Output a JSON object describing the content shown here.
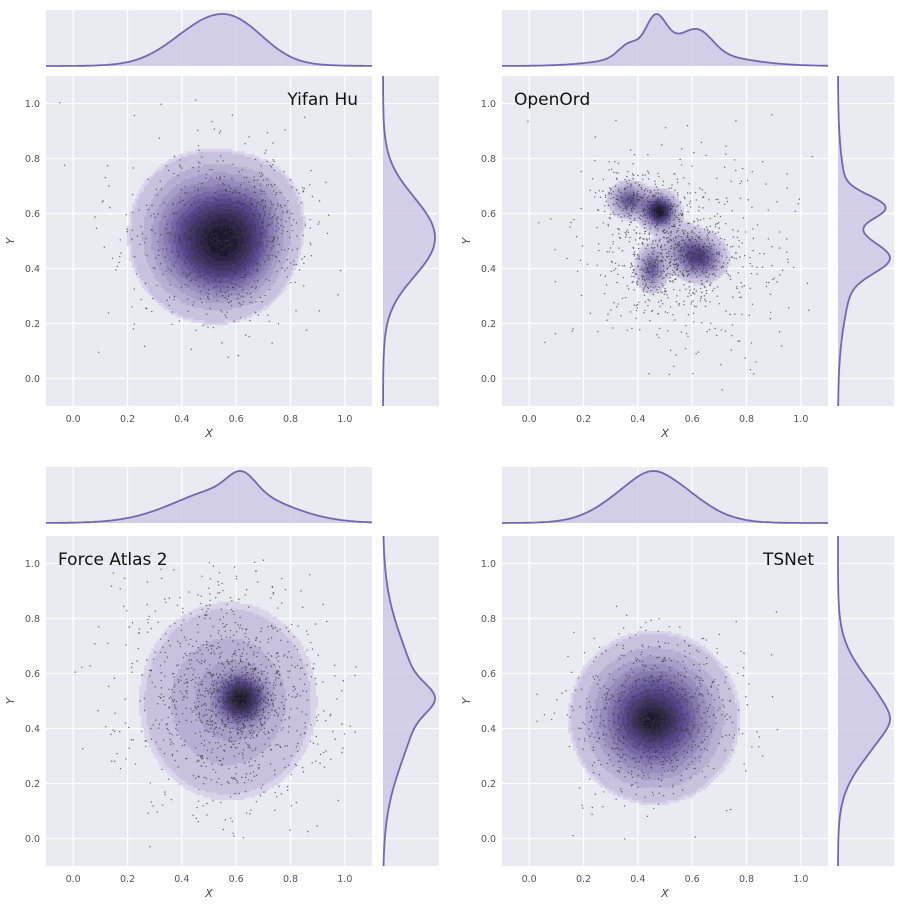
{
  "chart_data": [
    {
      "type": "scatter",
      "title": "Yifan Hu",
      "xlabel": "X",
      "ylabel": "Y",
      "xlim": [
        -0.1,
        1.1
      ],
      "ylim": [
        -0.1,
        1.1
      ],
      "xticks": [
        "0.0",
        "0.2",
        "0.4",
        "0.6",
        "0.8",
        "1.0"
      ],
      "yticks": [
        "0.0",
        "0.2",
        "0.4",
        "0.6",
        "0.8",
        "1.0"
      ],
      "grid": true,
      "title_position": "top-right",
      "marginals": true,
      "density_modes": [
        {
          "x": 0.49,
          "y": 0.52,
          "sx": 0.13,
          "sy": 0.14,
          "w": 1.0
        },
        {
          "x": 0.6,
          "y": 0.45,
          "sx": 0.1,
          "sy": 0.1,
          "w": 0.5
        },
        {
          "x": 0.66,
          "y": 0.6,
          "sx": 0.1,
          "sy": 0.1,
          "w": 0.35
        }
      ],
      "scatter_spread": {
        "x": 0.55,
        "y": 0.5,
        "sx": 0.19,
        "sy": 0.19,
        "n": 900
      }
    },
    {
      "type": "scatter",
      "title": "OpenOrd",
      "xlabel": "X",
      "ylabel": "Y",
      "xlim": [
        -0.1,
        1.1
      ],
      "ylim": [
        -0.1,
        1.1
      ],
      "xticks": [
        "0.0",
        "0.2",
        "0.4",
        "0.6",
        "0.8",
        "1.0"
      ],
      "yticks": [
        "0.0",
        "0.2",
        "0.4",
        "0.6",
        "0.8",
        "1.0"
      ],
      "grid": true,
      "title_position": "top-left",
      "marginals": true,
      "density_modes": [
        {
          "x": 0.48,
          "y": 0.61,
          "sx": 0.035,
          "sy": 0.035,
          "w": 1.0
        },
        {
          "x": 0.37,
          "y": 0.65,
          "sx": 0.04,
          "sy": 0.035,
          "w": 0.55
        },
        {
          "x": 0.63,
          "y": 0.44,
          "sx": 0.05,
          "sy": 0.045,
          "w": 0.6
        },
        {
          "x": 0.45,
          "y": 0.4,
          "sx": 0.03,
          "sy": 0.045,
          "w": 0.5
        },
        {
          "x": 0.56,
          "y": 0.48,
          "sx": 0.05,
          "sy": 0.05,
          "w": 0.25
        }
      ],
      "scatter_spread": {
        "x": 0.55,
        "y": 0.47,
        "sx": 0.19,
        "sy": 0.19,
        "n": 1200
      }
    },
    {
      "type": "scatter",
      "title": "Force Atlas 2",
      "xlabel": "X",
      "ylabel": "Y",
      "xlim": [
        -0.1,
        1.1
      ],
      "ylim": [
        -0.1,
        1.1
      ],
      "xticks": [
        "0.0",
        "0.2",
        "0.4",
        "0.6",
        "0.8",
        "1.0"
      ],
      "yticks": [
        "0.0",
        "0.2",
        "0.4",
        "0.6",
        "0.8",
        "1.0"
      ],
      "grid": true,
      "title_position": "top-left",
      "marginals": true,
      "density_modes": [
        {
          "x": 0.62,
          "y": 0.51,
          "sx": 0.05,
          "sy": 0.05,
          "w": 1.0
        },
        {
          "x": 0.57,
          "y": 0.5,
          "sx": 0.19,
          "sy": 0.21,
          "w": 0.35
        }
      ],
      "scatter_spread": {
        "x": 0.57,
        "y": 0.5,
        "sx": 0.18,
        "sy": 0.2,
        "n": 1400
      }
    },
    {
      "type": "scatter",
      "title": "TSNet",
      "xlabel": "X",
      "ylabel": "Y",
      "xlim": [
        -0.1,
        1.1
      ],
      "ylim": [
        -0.1,
        1.1
      ],
      "xticks": [
        "0.0",
        "0.2",
        "0.4",
        "0.6",
        "0.8",
        "1.0"
      ],
      "yticks": [
        "0.0",
        "0.2",
        "0.4",
        "0.6",
        "0.8",
        "1.0"
      ],
      "grid": true,
      "title_position": "top-right",
      "marginals": true,
      "density_modes": [
        {
          "x": 0.46,
          "y": 0.44,
          "sx": 0.14,
          "sy": 0.14,
          "w": 1.0
        },
        {
          "x": 0.45,
          "y": 0.43,
          "sx": 0.05,
          "sy": 0.04,
          "w": 0.3
        }
      ],
      "scatter_spread": {
        "x": 0.47,
        "y": 0.45,
        "sx": 0.16,
        "sy": 0.16,
        "n": 1000
      }
    }
  ],
  "colors": {
    "panel_bg": "#EAEAF2",
    "grid": "#FFFFFF",
    "density_light": "#D9D4EA",
    "density_dark": "#16101F",
    "marginal_line": "#7467B0",
    "marginal_fill": "#CDC7E4",
    "points": "#3A3A3A"
  }
}
